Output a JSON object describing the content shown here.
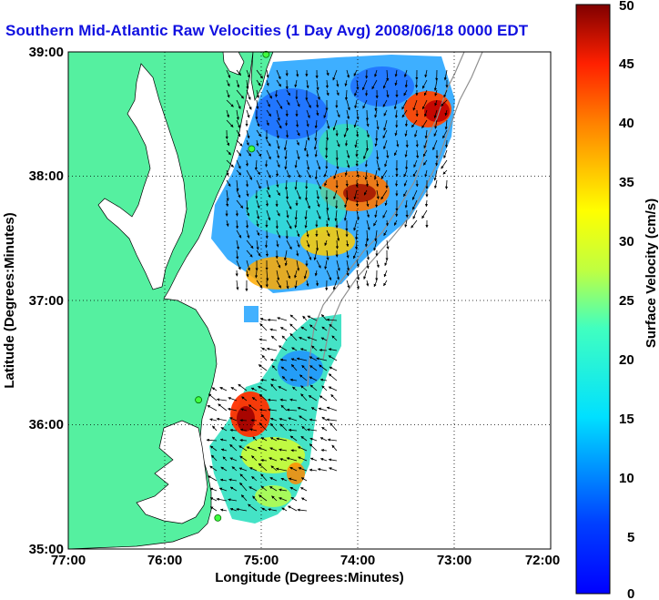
{
  "title": "Southern Mid-Atlantic Raw Velocities (1 Day Avg) 2008/06/18 0000 EDT",
  "map": {
    "xlabel": "Longitude (Degrees:Minutes)",
    "ylabel": "Latitude (Degrees:Minutes)",
    "xticks": [
      "77:00",
      "76:00",
      "75:00",
      "74:00",
      "73:00",
      "72:00"
    ],
    "yticks": [
      "39:00",
      "38:00",
      "37:00",
      "36:00",
      "35:00"
    ],
    "lon_range": [
      -77,
      -72
    ],
    "lat_range": [
      35,
      39
    ],
    "grid": "dotted",
    "land_color": "#55f0a0",
    "water_color": "#ffffff"
  },
  "colorbar": {
    "label": "Surface Velocity (cm/s)",
    "ticks": [
      "50",
      "45",
      "40",
      "35",
      "30",
      "25",
      "20",
      "15",
      "10",
      "5",
      "0"
    ],
    "range": [
      0,
      50
    ],
    "colormap": "jet"
  },
  "stations": [
    {
      "lon": -74.95,
      "lat": 38.98
    },
    {
      "lon": -75.1,
      "lat": 38.22
    },
    {
      "lon": -75.65,
      "lat": 36.2
    },
    {
      "lon": -75.45,
      "lat": 35.25
    }
  ]
}
